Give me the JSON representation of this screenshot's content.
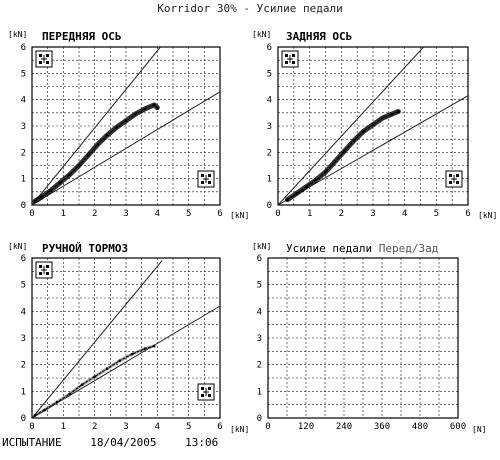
{
  "page_title": "Korridor 30% - Усилие педали",
  "footer": {
    "label": "ИСПЫТАНИЕ",
    "date": "18/04/2005",
    "time": "13:06"
  },
  "colors": {
    "grid": "#111111",
    "line": "#222222",
    "trace": "#000000",
    "trace_faint": "#555555"
  },
  "chart_data": [
    {
      "type": "scatter",
      "title": "ПЕРЕДНЯЯ ОСЬ",
      "x_unit": "[kN]",
      "y_unit": "[kN]",
      "xlim": [
        0,
        6
      ],
      "ylim": [
        0,
        6
      ],
      "x_ticks": [
        "0",
        "1",
        "2",
        "3",
        "4",
        "5",
        "6"
      ],
      "y_ticks": [
        "0",
        "1",
        "2",
        "3",
        "4",
        "5",
        "6"
      ],
      "grid": true,
      "icons": [
        "front-axle-icon",
        "axle-diagram-icon"
      ],
      "corridor_upper": [
        [
          0,
          0
        ],
        [
          4.1,
          6
        ]
      ],
      "corridor_lower": [
        [
          0,
          0
        ],
        [
          6,
          4.3
        ]
      ],
      "trace": [
        [
          0.1,
          0.15
        ],
        [
          0.3,
          0.3
        ],
        [
          0.6,
          0.55
        ],
        [
          0.9,
          0.85
        ],
        [
          1.2,
          1.15
        ],
        [
          1.5,
          1.5
        ],
        [
          1.8,
          1.9
        ],
        [
          2.1,
          2.3
        ],
        [
          2.4,
          2.65
        ],
        [
          2.7,
          2.95
        ],
        [
          3.0,
          3.2
        ],
        [
          3.3,
          3.45
        ],
        [
          3.6,
          3.65
        ],
        [
          3.9,
          3.8
        ],
        [
          4.0,
          3.7
        ]
      ]
    },
    {
      "type": "scatter",
      "title": "ЗАДНЯЯ ОСЬ",
      "x_unit": "[kN]",
      "y_unit": "[kN]",
      "xlim": [
        0,
        6
      ],
      "ylim": [
        0,
        6
      ],
      "x_ticks": [
        "0",
        "1",
        "2",
        "3",
        "4",
        "5",
        "6"
      ],
      "y_ticks": [
        "0",
        "1",
        "2",
        "3",
        "4",
        "5",
        "6"
      ],
      "grid": true,
      "icons": [
        "rear-axle-icon",
        "axle-diagram-icon"
      ],
      "corridor_upper": [
        [
          0,
          0
        ],
        [
          4.6,
          6
        ]
      ],
      "corridor_lower": [
        [
          0,
          0
        ],
        [
          6,
          4.15
        ]
      ],
      "trace": [
        [
          0.3,
          0.2
        ],
        [
          0.6,
          0.45
        ],
        [
          0.9,
          0.7
        ],
        [
          1.2,
          0.95
        ],
        [
          1.5,
          1.25
        ],
        [
          1.8,
          1.65
        ],
        [
          2.1,
          2.05
        ],
        [
          2.4,
          2.45
        ],
        [
          2.7,
          2.8
        ],
        [
          3.0,
          3.05
        ],
        [
          3.3,
          3.3
        ],
        [
          3.6,
          3.45
        ],
        [
          3.8,
          3.55
        ]
      ]
    },
    {
      "type": "scatter",
      "title": "РУЧНОЙ ТОРМОЗ",
      "x_unit": "[kN]",
      "y_unit": "[kN]",
      "xlim": [
        0,
        6
      ],
      "ylim": [
        0,
        6
      ],
      "x_ticks": [
        "0",
        "1",
        "2",
        "3",
        "4",
        "5",
        "6"
      ],
      "y_ticks": [
        "0",
        "1",
        "2",
        "3",
        "4",
        "5",
        "6"
      ],
      "grid": true,
      "icons": [
        "handbrake-icon",
        "axle-diagram-icon"
      ],
      "corridor_upper": [
        [
          0,
          0
        ],
        [
          4.15,
          5.9
        ]
      ],
      "corridor_lower": [
        [
          0,
          0
        ],
        [
          6,
          4.2
        ]
      ],
      "trace": [
        [
          0.1,
          0.1
        ],
        [
          0.4,
          0.3
        ],
        [
          0.8,
          0.6
        ],
        [
          1.2,
          0.9
        ],
        [
          1.6,
          1.25
        ],
        [
          2.0,
          1.55
        ],
        [
          2.4,
          1.85
        ],
        [
          2.8,
          2.15
        ],
        [
          3.2,
          2.4
        ],
        [
          3.6,
          2.6
        ],
        [
          3.9,
          2.7
        ]
      ]
    },
    {
      "type": "line",
      "title": "Усилие педали",
      "title_suffix": "Перед/Зад",
      "x_unit": "[N]",
      "y_unit": "[kN]",
      "xlim": [
        0,
        600
      ],
      "ylim": [
        0,
        6
      ],
      "x_ticks": [
        "0",
        "120",
        "240",
        "360",
        "480",
        "600"
      ],
      "y_ticks": [
        "0",
        "1",
        "2",
        "3",
        "4",
        "5",
        "6"
      ],
      "grid": true,
      "icons": [],
      "trace": []
    }
  ]
}
